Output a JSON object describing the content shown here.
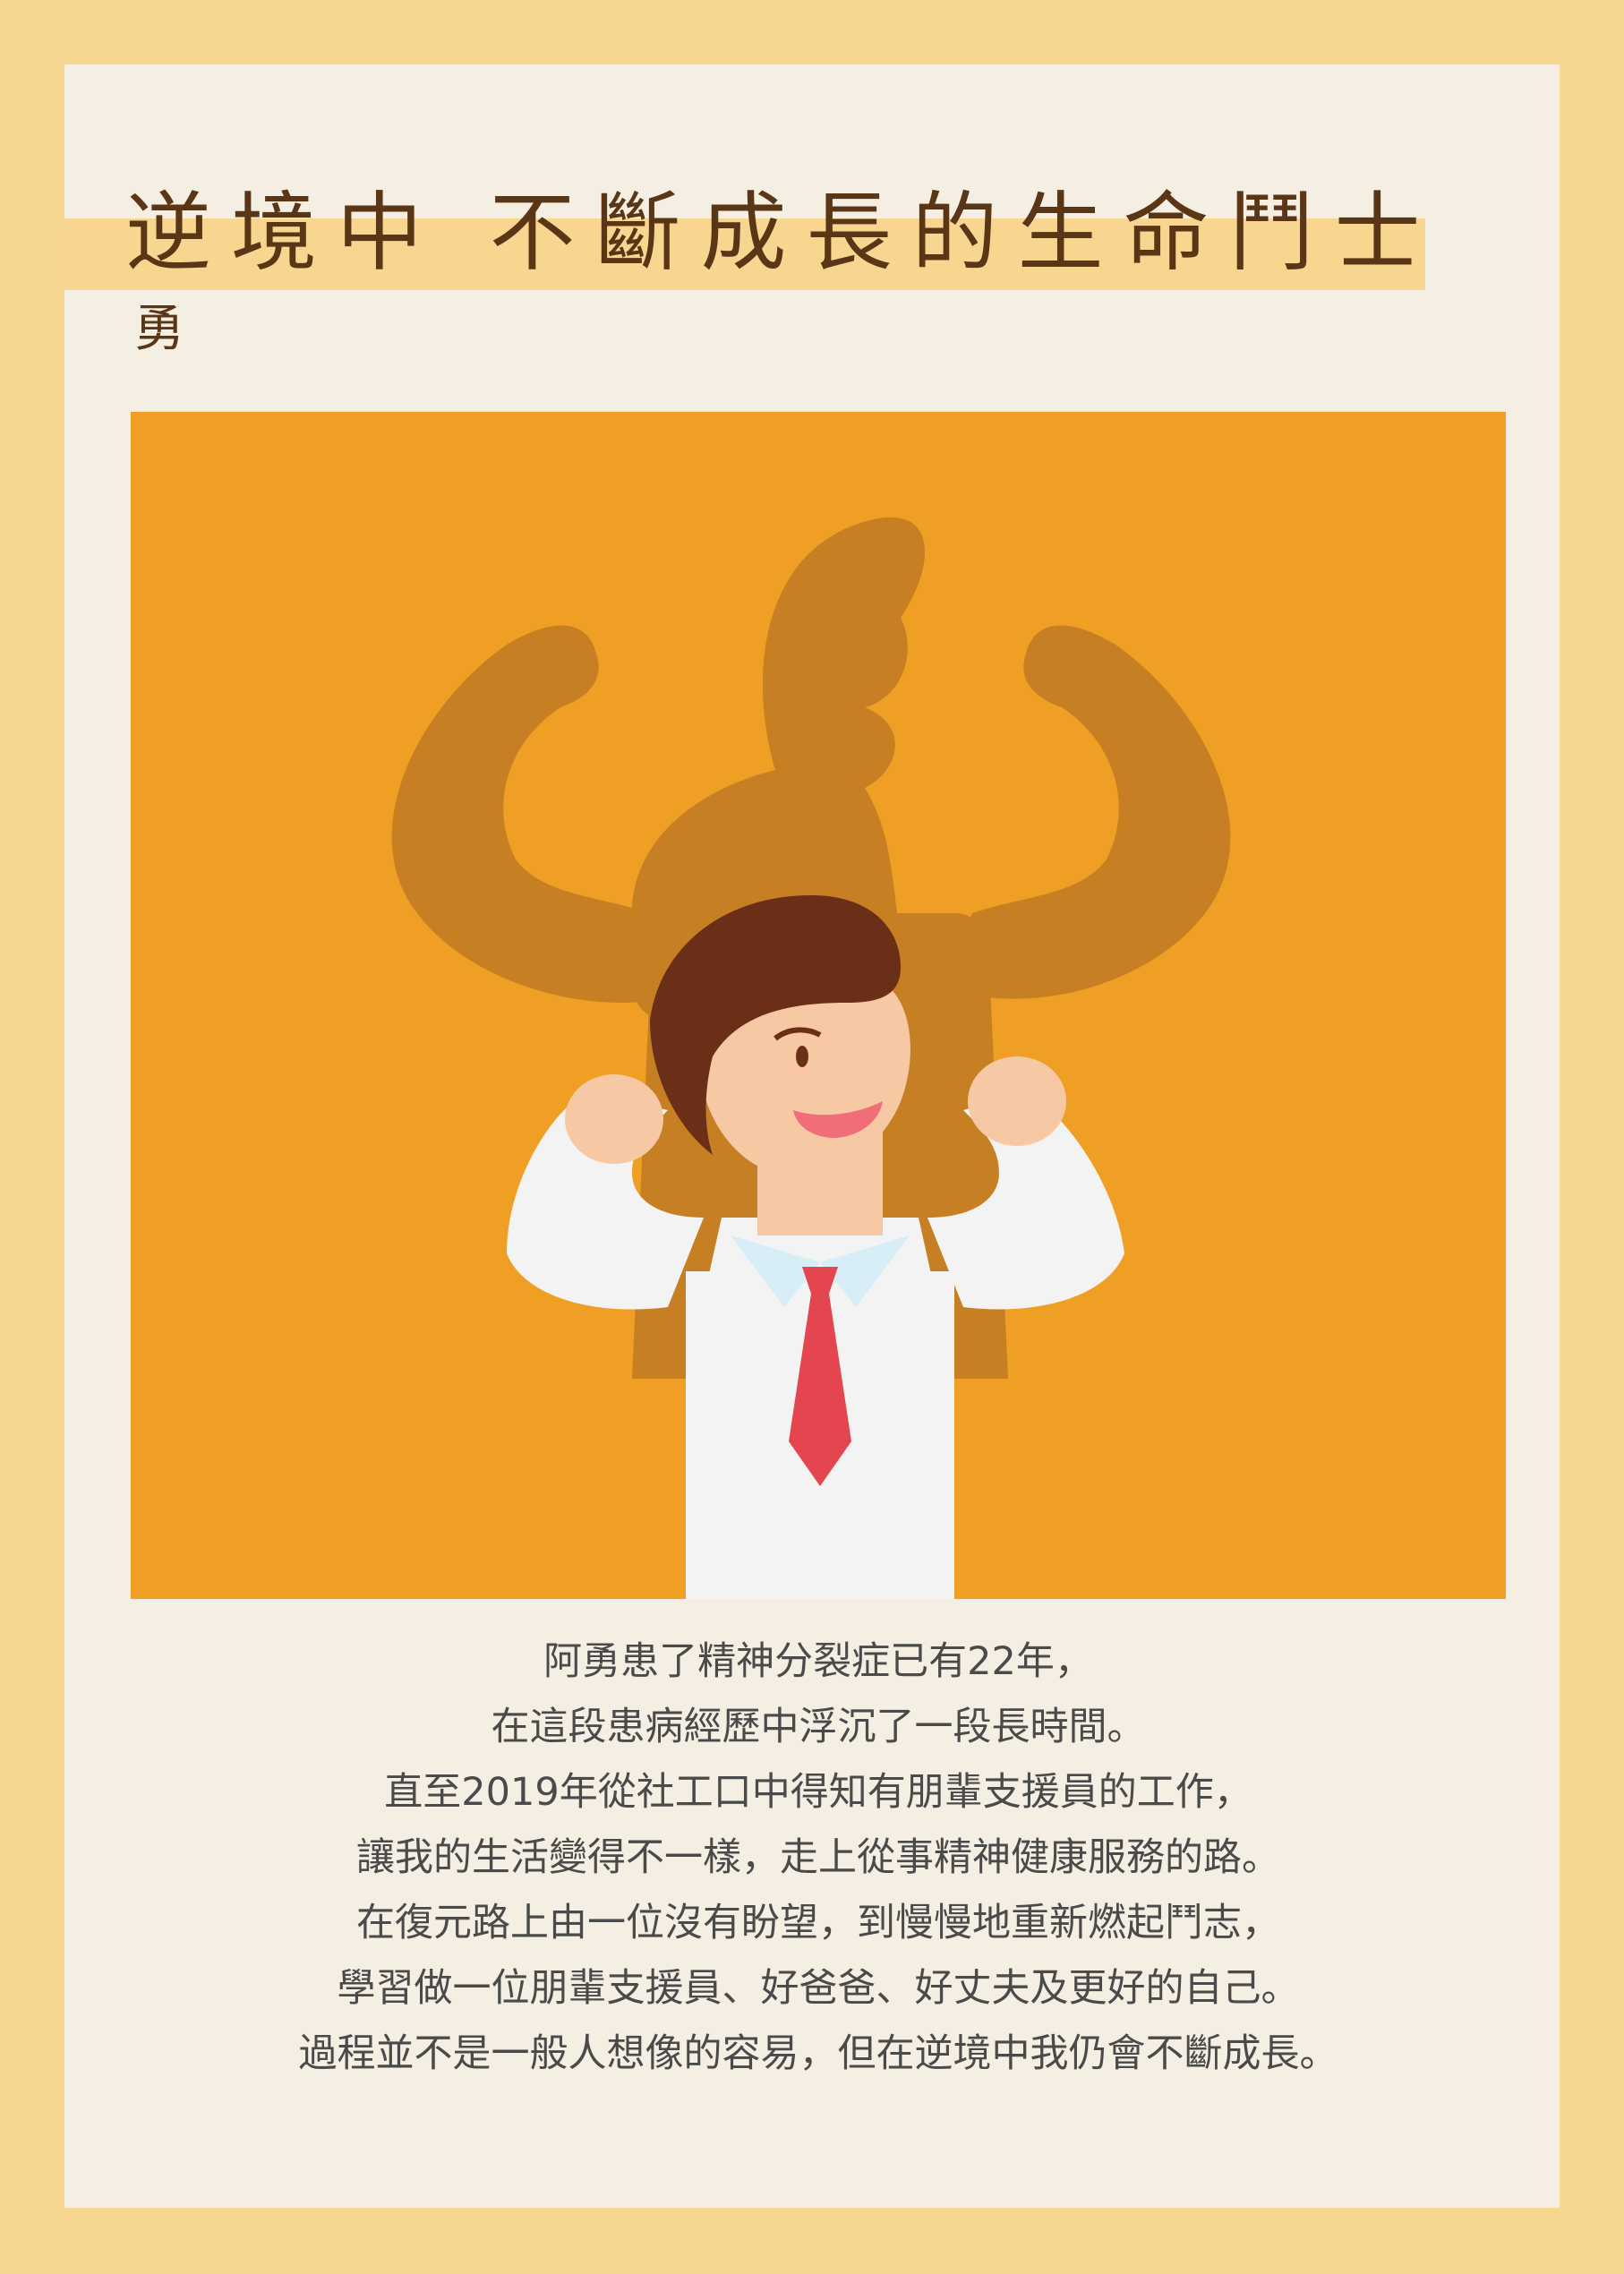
{
  "poster": {
    "title": "逆境中 不斷成長的生命鬥士",
    "author": "勇",
    "illustration": {
      "description_icon": "strong-man-shadow-illustration",
      "colors": {
        "background": "#ef9f24",
        "shadow": "#c77f23",
        "hair": "#6b2f17",
        "skin": "#f6c9a4",
        "shirt": "#f3f3f3",
        "collar": "#d7eef6",
        "tie": "#e3464f",
        "mouth": "#ef6e78"
      }
    },
    "body_lines": [
      "阿勇患了精神分裂症已有22年，",
      "在這段患病經歷中浮沉了一段長時間。",
      "直至2019年從社工口中得知有朋輩支援員的工作，",
      "讓我的生活變得不一樣，走上從事精神健康服務的路。",
      "在復元路上由一位沒有盼望，到慢慢地重新燃起鬥志，",
      "學習做一位朋輩支援員、好爸爸、好丈夫及更好的自己。",
      "過程並不是一般人想像的容易，但在逆境中我仍會不斷成長。"
    ]
  }
}
